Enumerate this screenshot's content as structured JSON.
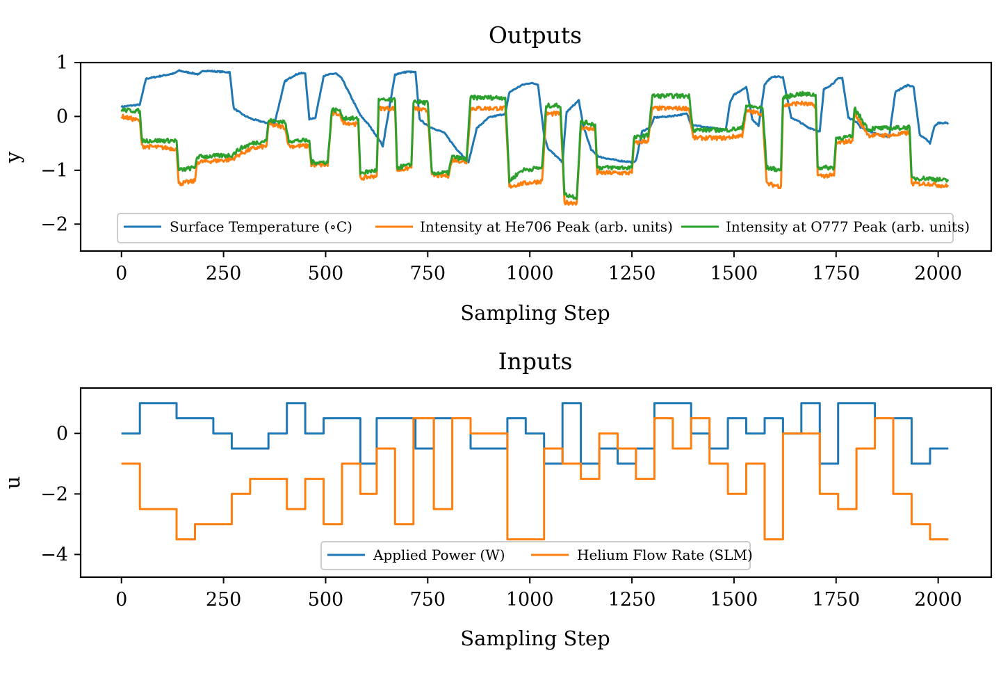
{
  "colors": {
    "blue": "#1f77b4",
    "orange": "#ff7f0e",
    "green": "#2ca02c"
  },
  "chart_data": [
    {
      "type": "line",
      "title": "Outputs",
      "xlabel": "Sampling Step",
      "ylabel": "y",
      "xlim": [
        -100,
        2130
      ],
      "ylim": [
        -2.5,
        1.0
      ],
      "xticks": [
        0,
        250,
        500,
        750,
        1000,
        1250,
        1500,
        1750,
        2000
      ],
      "xtick_labels": [
        "0",
        "250",
        "500",
        "750",
        "1000",
        "1250",
        "1500",
        "1750",
        "2000"
      ],
      "yticks": [
        1,
        0,
        -1,
        -2
      ],
      "ytick_labels": [
        "1",
        "0",
        "−1",
        "−2"
      ],
      "legend": "lower-center",
      "grid": false,
      "series": [
        {
          "name": "Surface Temperature (∘C)",
          "color": "#1f77b4",
          "x": [
            0,
            45,
            60,
            130,
            140,
            190,
            200,
            265,
            275,
            300,
            320,
            355,
            375,
            400,
            410,
            420,
            435,
            450,
            460,
            475,
            495,
            510,
            525,
            540,
            585,
            605,
            630,
            640,
            670,
            680,
            700,
            720,
            730,
            750,
            790,
            820,
            830,
            850,
            870,
            900,
            940,
            950,
            980,
            1000,
            1020,
            1035,
            1045,
            1080,
            1090,
            1120,
            1130,
            1150,
            1170,
            1215,
            1255,
            1260,
            1275,
            1295,
            1305,
            1340,
            1385,
            1395,
            1430,
            1450,
            1480,
            1490,
            1500,
            1520,
            1530,
            1545,
            1560,
            1575,
            1590,
            1610,
            1620,
            1640,
            1660,
            1680,
            1700,
            1710,
            1720,
            1740,
            1755,
            1765,
            1780,
            1800,
            1810,
            1840,
            1860,
            1880,
            1895,
            1910,
            1925,
            1940,
            1955,
            1970,
            1980,
            1990,
            2000,
            2025
          ],
          "y": [
            0.18,
            0.22,
            0.7,
            0.8,
            0.85,
            0.78,
            0.85,
            0.82,
            0.15,
            0.02,
            -0.05,
            -0.12,
            -0.12,
            0.65,
            0.7,
            0.75,
            0.8,
            0.8,
            -0.05,
            -0.02,
            0.75,
            0.78,
            0.8,
            0.7,
            0.02,
            -0.15,
            -0.42,
            -0.55,
            0.78,
            0.8,
            0.83,
            0.82,
            -0.05,
            -0.18,
            -0.3,
            -0.6,
            -0.68,
            -0.85,
            -0.22,
            -0.02,
            0.05,
            0.45,
            0.58,
            0.62,
            0.6,
            -0.35,
            -0.6,
            -0.85,
            0.08,
            0.3,
            -0.15,
            -0.62,
            -0.75,
            -0.82,
            -0.85,
            -0.82,
            -0.28,
            -0.2,
            -0.02,
            0.0,
            0.05,
            -0.15,
            -0.2,
            -0.22,
            -0.25,
            0.25,
            0.4,
            0.5,
            0.55,
            -0.05,
            -0.18,
            0.6,
            0.72,
            0.75,
            0.72,
            -0.02,
            -0.1,
            -0.2,
            -0.25,
            -0.28,
            0.5,
            0.6,
            0.7,
            0.72,
            -0.02,
            -0.1,
            -0.2,
            -0.3,
            -0.35,
            -0.38,
            0.45,
            0.52,
            0.58,
            0.55,
            -0.35,
            -0.42,
            -0.5,
            -0.2,
            -0.12,
            -0.12
          ]
        },
        {
          "name": "Intensity at He706 Peak (arb. units)",
          "color": "#ff7f0e",
          "x": [
            0,
            45,
            50,
            135,
            140,
            180,
            185,
            270,
            290,
            320,
            355,
            360,
            400,
            410,
            460,
            465,
            505,
            515,
            535,
            540,
            580,
            585,
            625,
            630,
            670,
            675,
            710,
            715,
            750,
            760,
            800,
            810,
            845,
            855,
            940,
            950,
            980,
            1030,
            1040,
            1075,
            1085,
            1115,
            1125,
            1160,
            1165,
            1250,
            1255,
            1290,
            1300,
            1390,
            1400,
            1480,
            1520,
            1530,
            1570,
            1580,
            1615,
            1620,
            1660,
            1700,
            1705,
            1745,
            1750,
            1790,
            1795,
            1830,
            1840,
            1890,
            1930,
            1935,
            1980,
            2025
          ],
          "y": [
            0.0,
            -0.08,
            -0.55,
            -0.6,
            -1.25,
            -1.2,
            -0.85,
            -0.8,
            -0.7,
            -0.6,
            -0.55,
            -0.15,
            -0.2,
            -0.55,
            -0.55,
            -0.9,
            -0.9,
            0.05,
            0.05,
            -0.1,
            -0.15,
            -1.15,
            -1.1,
            0.15,
            0.15,
            -1.0,
            -0.95,
            0.15,
            0.1,
            -1.1,
            -1.1,
            -0.8,
            -0.85,
            0.15,
            0.15,
            -1.3,
            -1.25,
            -1.2,
            0.05,
            0.05,
            -1.6,
            -1.6,
            -0.2,
            -0.25,
            -1.05,
            -1.05,
            -0.5,
            -0.45,
            0.15,
            0.15,
            -0.4,
            -0.4,
            -0.35,
            0.1,
            0.05,
            -1.25,
            -1.3,
            0.2,
            0.25,
            0.2,
            -1.1,
            -1.1,
            -0.5,
            -0.45,
            0.05,
            -0.35,
            -0.35,
            -0.35,
            -0.3,
            -1.25,
            -1.25,
            -1.3
          ]
        },
        {
          "name": "Intensity at O777 Peak (arb. units)",
          "color": "#2ca02c",
          "x": [
            0,
            45,
            50,
            135,
            140,
            180,
            185,
            270,
            290,
            320,
            355,
            360,
            400,
            410,
            460,
            465,
            505,
            515,
            535,
            540,
            580,
            585,
            625,
            630,
            670,
            675,
            710,
            715,
            750,
            760,
            800,
            810,
            845,
            855,
            940,
            950,
            980,
            1030,
            1040,
            1075,
            1085,
            1115,
            1125,
            1160,
            1165,
            1250,
            1255,
            1290,
            1300,
            1390,
            1400,
            1480,
            1520,
            1530,
            1570,
            1580,
            1615,
            1620,
            1660,
            1700,
            1705,
            1745,
            1750,
            1790,
            1795,
            1830,
            1840,
            1890,
            1930,
            1935,
            1980,
            2025
          ],
          "y": [
            0.12,
            0.1,
            -0.45,
            -0.45,
            -1.0,
            -0.95,
            -0.75,
            -0.72,
            -0.6,
            -0.5,
            -0.45,
            -0.08,
            -0.1,
            -0.45,
            -0.45,
            -0.85,
            -0.85,
            0.12,
            0.12,
            -0.02,
            -0.05,
            -1.05,
            -1.0,
            0.3,
            0.3,
            -0.95,
            -0.9,
            0.28,
            0.25,
            -1.05,
            -1.05,
            -0.75,
            -0.8,
            0.35,
            0.35,
            -1.2,
            -1.0,
            -0.95,
            0.2,
            0.2,
            -1.45,
            -1.5,
            -0.1,
            -0.15,
            -0.95,
            -0.95,
            -0.4,
            -0.35,
            0.38,
            0.38,
            -0.25,
            -0.25,
            -0.22,
            0.2,
            0.15,
            -0.95,
            -1.0,
            0.35,
            0.42,
            0.4,
            -0.95,
            -0.95,
            -0.4,
            -0.38,
            0.15,
            -0.25,
            -0.22,
            -0.22,
            -0.2,
            -1.15,
            -1.15,
            -1.2
          ]
        }
      ]
    },
    {
      "type": "line",
      "title": "Inputs",
      "xlabel": "Sampling Step",
      "ylabel": "u",
      "xlim": [
        -100,
        2130
      ],
      "ylim": [
        -4.75,
        1.5
      ],
      "xticks": [
        0,
        250,
        500,
        750,
        1000,
        1250,
        1500,
        1750,
        2000
      ],
      "xtick_labels": [
        "0",
        "250",
        "500",
        "750",
        "1000",
        "1250",
        "1500",
        "1750",
        "2000"
      ],
      "yticks": [
        0,
        -2,
        -4
      ],
      "ytick_labels": [
        "0",
        "−2",
        "−4"
      ],
      "legend": "lower-center",
      "grid": false,
      "series": [
        {
          "name": "Applied Power (W)",
          "color": "#1f77b4",
          "step": true,
          "x": [
            0,
            45,
            135,
            225,
            270,
            360,
            405,
            450,
            495,
            585,
            625,
            720,
            765,
            855,
            945,
            990,
            1035,
            1080,
            1125,
            1170,
            1215,
            1260,
            1305,
            1395,
            1440,
            1485,
            1530,
            1575,
            1620,
            1665,
            1710,
            1755,
            1845,
            1935,
            1980,
            2025
          ],
          "y": [
            0,
            1,
            0.5,
            0,
            -0.5,
            0,
            1,
            0,
            0.5,
            -1,
            0.5,
            -0.5,
            0.5,
            -0.5,
            0.5,
            0,
            -1,
            1,
            -1,
            -0.5,
            -1,
            -0.5,
            1,
            0,
            -0.5,
            0.5,
            0,
            0.5,
            0,
            1,
            -1,
            1,
            0.5,
            -1,
            -0.5,
            -0.5
          ]
        },
        {
          "name": "Helium Flow Rate (SLM)",
          "color": "#ff7f0e",
          "step": true,
          "x": [
            0,
            45,
            135,
            180,
            270,
            315,
            405,
            450,
            495,
            540,
            585,
            625,
            670,
            715,
            765,
            810,
            855,
            945,
            1035,
            1080,
            1125,
            1170,
            1215,
            1260,
            1305,
            1350,
            1395,
            1440,
            1485,
            1530,
            1575,
            1620,
            1710,
            1755,
            1800,
            1845,
            1890,
            1935,
            1980,
            2025
          ],
          "y": [
            -1,
            -2.5,
            -3.5,
            -3,
            -2,
            -1.5,
            -2.5,
            -1.5,
            -3,
            -1,
            -2,
            -0.5,
            -3,
            0.5,
            -2.5,
            0.5,
            0,
            -3.5,
            -0.5,
            -1,
            -1.5,
            0,
            -0.5,
            -1.5,
            0.5,
            -0.5,
            0.5,
            -1,
            -2,
            -1,
            -3.5,
            0,
            -2,
            -2.5,
            -0.5,
            0.5,
            -2,
            -3,
            -3.5,
            -3.5
          ]
        }
      ]
    }
  ]
}
